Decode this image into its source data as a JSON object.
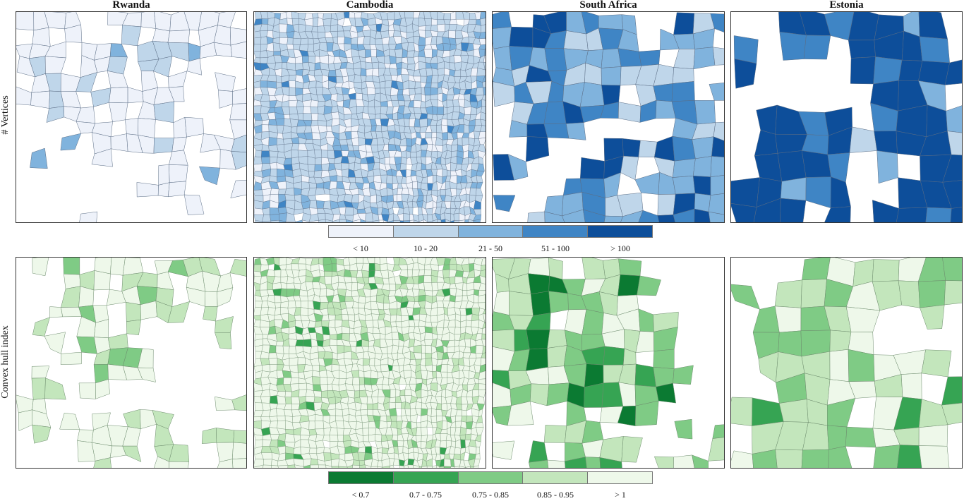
{
  "columns": [
    "Rwanda",
    "Cambodia",
    "South Africa",
    "Estonia"
  ],
  "rows": [
    "# Vertices",
    "Convex hull index"
  ],
  "legends": {
    "vertices": {
      "labels": [
        "< 10",
        "10 - 20",
        "21 - 50",
        "51 - 100",
        "> 100"
      ],
      "colors": [
        "#eef2fa",
        "#bfd6ea",
        "#80b3dd",
        "#3f85c5",
        "#0d4e9a"
      ]
    },
    "convex": {
      "labels": [
        "< 0.7",
        "0.7 - 0.75",
        "0.75 - 0.85",
        "0.85 - 0.95",
        "> 1"
      ],
      "colors": [
        "#0b7a32",
        "#36a453",
        "#7fcb85",
        "#c3e6bc",
        "#eef8ea"
      ]
    }
  },
  "panels": {
    "vertices": [
      {
        "country": "Rwanda",
        "fill_levels": [
          0.78,
          0.18,
          0.04,
          0.0,
          0.0
        ],
        "coverage": 0.22
      },
      {
        "country": "Cambodia",
        "fill_levels": [
          0.2,
          0.62,
          0.16,
          0.02,
          0.0
        ],
        "coverage": 1.0
      },
      {
        "country": "South Africa",
        "fill_levels": [
          0.0,
          0.22,
          0.4,
          0.28,
          0.1
        ],
        "coverage": 0.88
      },
      {
        "country": "Estonia",
        "fill_levels": [
          0.0,
          0.02,
          0.12,
          0.18,
          0.68
        ],
        "coverage": 0.6
      }
    ],
    "convex": [
      {
        "country": "Rwanda",
        "fill_levels": [
          0.0,
          0.03,
          0.12,
          0.3,
          0.55
        ],
        "coverage": 0.22
      },
      {
        "country": "Cambodia",
        "fill_levels": [
          0.0,
          0.02,
          0.05,
          0.2,
          0.73
        ],
        "coverage": 1.0
      },
      {
        "country": "South Africa",
        "fill_levels": [
          0.08,
          0.14,
          0.26,
          0.26,
          0.26
        ],
        "coverage": 0.88
      },
      {
        "country": "Estonia",
        "fill_levels": [
          0.04,
          0.08,
          0.22,
          0.3,
          0.36
        ],
        "coverage": 0.6
      }
    ]
  }
}
